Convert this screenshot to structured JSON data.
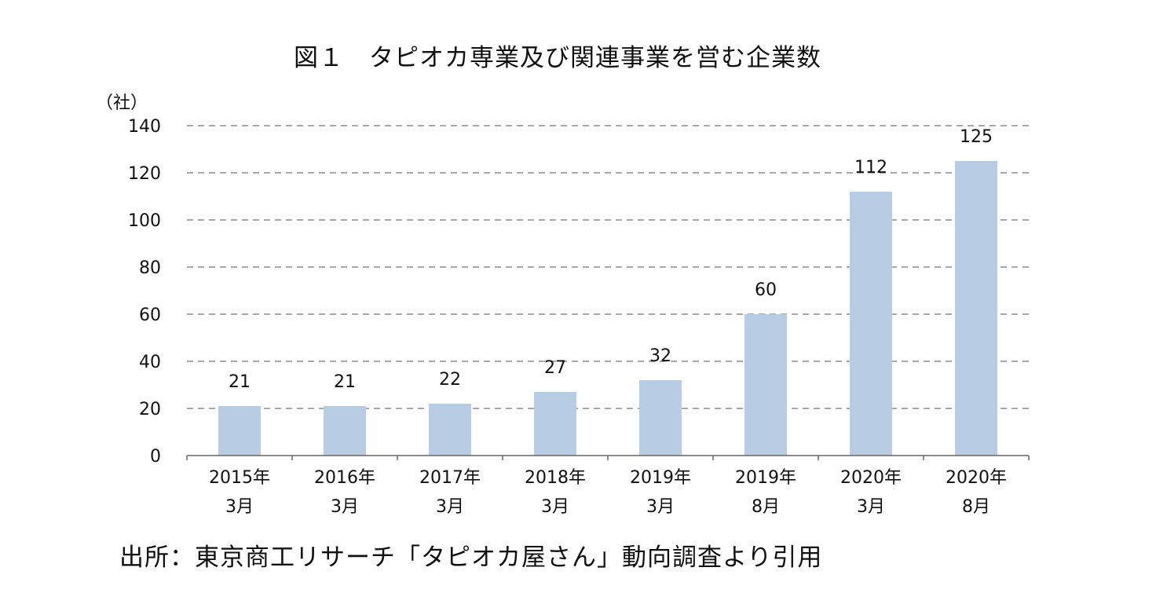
{
  "title": "図１　タピオカ専業及び関連事業を営む企業数",
  "source": "出所：東京商工リサーチ「タピオカ屋さん」動向調査より引用",
  "colors": {
    "bar": "#b8cde3",
    "grid": "#8c8c8c",
    "axis": "#666666",
    "text": "#111111"
  },
  "chart_data": {
    "type": "bar",
    "title": "図１　タピオカ専業及び関連事業を営む企業数",
    "xlabel": "",
    "ylabel": "（社）",
    "ylim": [
      0,
      140
    ],
    "yticks": [
      0,
      20,
      40,
      60,
      80,
      100,
      120,
      140
    ],
    "grid": true,
    "gridstyle": "dashed",
    "legend": "none",
    "categories": [
      [
        "2015年",
        "3月"
      ],
      [
        "2016年",
        "3月"
      ],
      [
        "2017年",
        "3月"
      ],
      [
        "2018年",
        "3月"
      ],
      [
        "2019年",
        "3月"
      ],
      [
        "2019年",
        "8月"
      ],
      [
        "2020年",
        "3月"
      ],
      [
        "2020年",
        "8月"
      ]
    ],
    "values": [
      21,
      21,
      22,
      27,
      32,
      60,
      112,
      125
    ]
  }
}
